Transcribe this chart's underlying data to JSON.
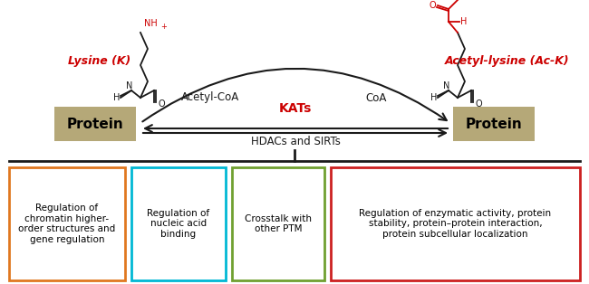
{
  "bg_color": "#ffffff",
  "lysine_label": "Lysine (K)",
  "acetyl_label": "Acetyl-lysine (Ac-K)",
  "acetylcoa_label": "Acetyl-CoA",
  "coa_label": "CoA",
  "kats_label": "KATs",
  "hdacs_label": "HDACs and SIRTs",
  "protein_color": "#b5a878",
  "protein_text": "Protein",
  "red_color": "#cc0000",
  "black_color": "#1a1a1a",
  "box1_text": "Regulation of\nchromatin higher-\norder structures and\ngene regulation",
  "box1_color": "#e07820",
  "box2_text": "Regulation of\nnucleic acid\nbinding",
  "box2_color": "#00b8d4",
  "box3_text": "Crosstalk with\nother PTM",
  "box3_color": "#70a030",
  "box4_text": "Regulation of enzymatic activity, protein\nstability, protein–protein interaction,\nprotein subcellular localization",
  "box4_color": "#cc2020"
}
